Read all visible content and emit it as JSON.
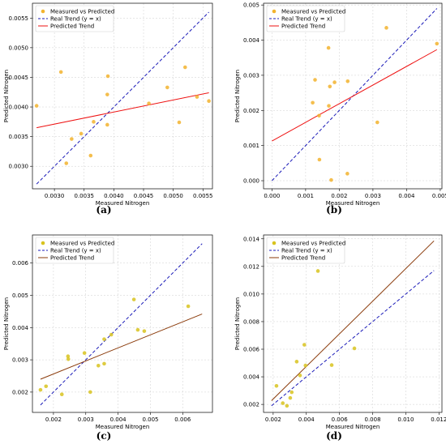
{
  "legend": {
    "scatter_label": "Measured vs Predicted",
    "real_label": "Real Trend (y = x)",
    "pred_label": "Predicted Trend"
  },
  "colors": {
    "point": "#f2b32e",
    "point_alt": "#d8c31e",
    "real": "#1a1ab8",
    "pred_red": "#ee1111",
    "pred_brown": "#8a3a0a"
  },
  "chart_data": [
    {
      "type": "scatter",
      "panel_label": "(a)",
      "xlabel": "Measured Nitrogen",
      "ylabel": "Predicted Nitrogen",
      "xlim": [
        0.00263,
        0.00566
      ],
      "ylim": [
        0.00262,
        0.00575
      ],
      "xticks": [
        "0.0030",
        "0.0035",
        "0.0040",
        "0.0045",
        "0.0050",
        "0.0055"
      ],
      "yticks": [
        "0.0030",
        "0.0035",
        "0.0040",
        "0.0045",
        "0.0050",
        "0.0055"
      ],
      "point_color": "#f2b32e",
      "pred_color": "#ee1111",
      "points": [
        [
          0.0027,
          0.00402
        ],
        [
          0.00311,
          0.00459
        ],
        [
          0.0032,
          0.00305
        ],
        [
          0.00329,
          0.00346
        ],
        [
          0.00345,
          0.00355
        ],
        [
          0.00361,
          0.00318
        ],
        [
          0.00366,
          0.00375
        ],
        [
          0.00389,
          0.0037
        ],
        [
          0.00389,
          0.00421
        ],
        [
          0.0039,
          0.00452
        ],
        [
          0.00459,
          0.00406
        ],
        [
          0.0049,
          0.00433
        ],
        [
          0.0051,
          0.00374
        ],
        [
          0.0052,
          0.00467
        ],
        [
          0.0054,
          0.00417
        ],
        [
          0.0056,
          0.0041
        ]
      ],
      "real_trend": [
        [
          0.0027,
          0.0027
        ],
        [
          0.0056,
          0.0056
        ]
      ],
      "predicted_trend": [
        [
          0.0027,
          0.00365
        ],
        [
          0.0056,
          0.00424
        ]
      ]
    },
    {
      "type": "scatter",
      "panel_label": "(b)",
      "xlabel": "Measured Nitrogen",
      "ylabel": "Predicted Nitrogen",
      "xlim": [
        -0.00025,
        0.00505
      ],
      "ylim": [
        -0.00023,
        0.00505
      ],
      "xticks": [
        "0.000",
        "0.001",
        "0.002",
        "0.003",
        "0.004",
        "0.005"
      ],
      "yticks": [
        "0.000",
        "0.001",
        "0.002",
        "0.003",
        "0.004",
        "0.005"
      ],
      "point_color": "#f2b32e",
      "pred_color": "#ee1111",
      "points": [
        [
          0.00121,
          0.00222
        ],
        [
          0.00128,
          0.00287
        ],
        [
          0.0014,
          0.00185
        ],
        [
          0.00141,
          0.0006
        ],
        [
          0.00168,
          0.00378
        ],
        [
          0.00169,
          0.00213
        ],
        [
          0.00172,
          0.00268
        ],
        [
          0.00176,
          2e-05
        ],
        [
          0.00186,
          0.0028
        ],
        [
          0.00224,
          0.0002
        ],
        [
          0.00225,
          0.00283
        ],
        [
          0.00313,
          0.00166
        ],
        [
          0.0034,
          0.00435
        ],
        [
          0.0049,
          0.0039
        ]
      ],
      "real_trend": [
        [
          0.0,
          0.0
        ],
        [
          0.0049,
          0.0049
        ]
      ],
      "predicted_trend": [
        [
          0.0,
          0.00113
        ],
        [
          0.0049,
          0.00373
        ]
      ]
    },
    {
      "type": "scatter",
      "panel_label": "(c)",
      "xlabel": "Measured Nitrogen",
      "ylabel": "Predicted Nitrogen",
      "xlim": [
        0.00135,
        0.00692
      ],
      "ylim": [
        0.00137,
        0.00687
      ],
      "xticks": [
        "0.002",
        "0.003",
        "0.004",
        "0.005",
        "0.006"
      ],
      "yticks": [
        "0.002",
        "0.003",
        "0.004",
        "0.005",
        "0.006"
      ],
      "point_color": "#d8c31e",
      "pred_color": "#8a3a0a",
      "points": [
        [
          0.0016,
          0.00207
        ],
        [
          0.00177,
          0.00218
        ],
        [
          0.00226,
          0.00193
        ],
        [
          0.00245,
          0.00311
        ],
        [
          0.00246,
          0.00302
        ],
        [
          0.00296,
          0.00321
        ],
        [
          0.00314,
          0.002
        ],
        [
          0.00339,
          0.00282
        ],
        [
          0.00357,
          0.00288
        ],
        [
          0.00357,
          0.00364
        ],
        [
          0.00379,
          0.00378
        ],
        [
          0.00449,
          0.00487
        ],
        [
          0.00461,
          0.00393
        ],
        [
          0.00481,
          0.00389
        ],
        [
          0.00617,
          0.00466
        ]
      ],
      "real_trend": [
        [
          0.0016,
          0.0016
        ],
        [
          0.0066,
          0.0066
        ]
      ],
      "predicted_trend": [
        [
          0.0016,
          0.0024
        ],
        [
          0.0066,
          0.00442
        ]
      ]
    },
    {
      "type": "scatter",
      "panel_label": "(d)",
      "xlabel": "Measured Nitrogen",
      "ylabel": "Predicted Nitrogen",
      "xlim": [
        0.00142,
        0.01218
      ],
      "ylim": [
        0.00142,
        0.01428
      ],
      "xticks": [
        "0.002",
        "0.004",
        "0.006",
        "0.008",
        "0.010",
        "0.012"
      ],
      "yticks": [
        "0.002",
        "0.004",
        "0.006",
        "0.008",
        "0.010",
        "0.012",
        "0.014"
      ],
      "point_color": "#d8c31e",
      "pred_color": "#8a3a0a",
      "points": [
        [
          0.0022,
          0.00334
        ],
        [
          0.00258,
          0.00209
        ],
        [
          0.00283,
          0.0019
        ],
        [
          0.00303,
          0.00247
        ],
        [
          0.00312,
          0.00288
        ],
        [
          0.00342,
          0.0051
        ],
        [
          0.00362,
          0.0041
        ],
        [
          0.00388,
          0.00632
        ],
        [
          0.00395,
          0.00482
        ],
        [
          0.0047,
          0.01167
        ],
        [
          0.00553,
          0.00485
        ],
        [
          0.0069,
          0.00606
        ]
      ],
      "real_trend": [
        [
          0.0019,
          0.0019
        ],
        [
          0.0117,
          0.0117
        ]
      ],
      "predicted_trend": [
        [
          0.0019,
          0.00227
        ],
        [
          0.0117,
          0.01385
        ]
      ]
    }
  ]
}
